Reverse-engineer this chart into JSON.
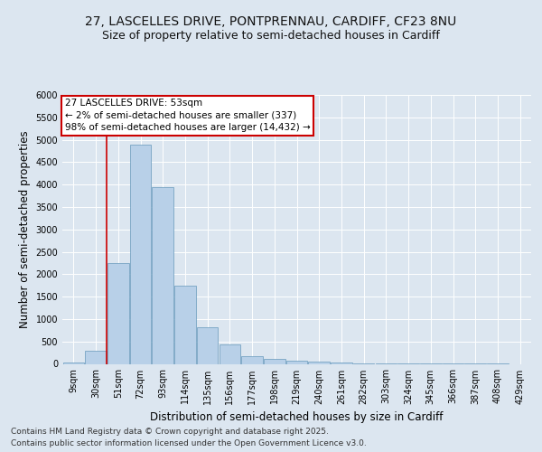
{
  "title_line1": "27, LASCELLES DRIVE, PONTPRENNAU, CARDIFF, CF23 8NU",
  "title_line2": "Size of property relative to semi-detached houses in Cardiff",
  "xlabel": "Distribution of semi-detached houses by size in Cardiff",
  "ylabel": "Number of semi-detached properties",
  "footer_line1": "Contains HM Land Registry data © Crown copyright and database right 2025.",
  "footer_line2": "Contains public sector information licensed under the Open Government Licence v3.0.",
  "annotation_title": "27 LASCELLES DRIVE: 53sqm",
  "annotation_line1": "← 2% of semi-detached houses are smaller (337)",
  "annotation_line2": "98% of semi-detached houses are larger (14,432) →",
  "bar_labels": [
    "9sqm",
    "30sqm",
    "51sqm",
    "72sqm",
    "93sqm",
    "114sqm",
    "135sqm",
    "156sqm",
    "177sqm",
    "198sqm",
    "219sqm",
    "240sqm",
    "261sqm",
    "282sqm",
    "303sqm",
    "324sqm",
    "345sqm",
    "366sqm",
    "387sqm",
    "408sqm",
    "429sqm"
  ],
  "bar_values": [
    30,
    290,
    2250,
    4900,
    3950,
    1750,
    820,
    430,
    165,
    120,
    70,
    50,
    30,
    20,
    10,
    5,
    5,
    2,
    1,
    1,
    0
  ],
  "bar_color": "#b8d0e8",
  "bar_edgecolor": "#6699bb",
  "vline_color": "#cc0000",
  "ylim": [
    0,
    6000
  ],
  "yticks": [
    0,
    500,
    1000,
    1500,
    2000,
    2500,
    3000,
    3500,
    4000,
    4500,
    5000,
    5500,
    6000
  ],
  "background_color": "#dce6f0",
  "plot_background": "#dce6f0",
  "grid_color": "#ffffff",
  "annotation_box_color": "#ffffff",
  "annotation_box_edgecolor": "#cc0000",
  "title_fontsize": 10,
  "subtitle_fontsize": 9,
  "axis_label_fontsize": 8.5,
  "tick_fontsize": 7,
  "annotation_fontsize": 7.5,
  "footer_fontsize": 6.5
}
